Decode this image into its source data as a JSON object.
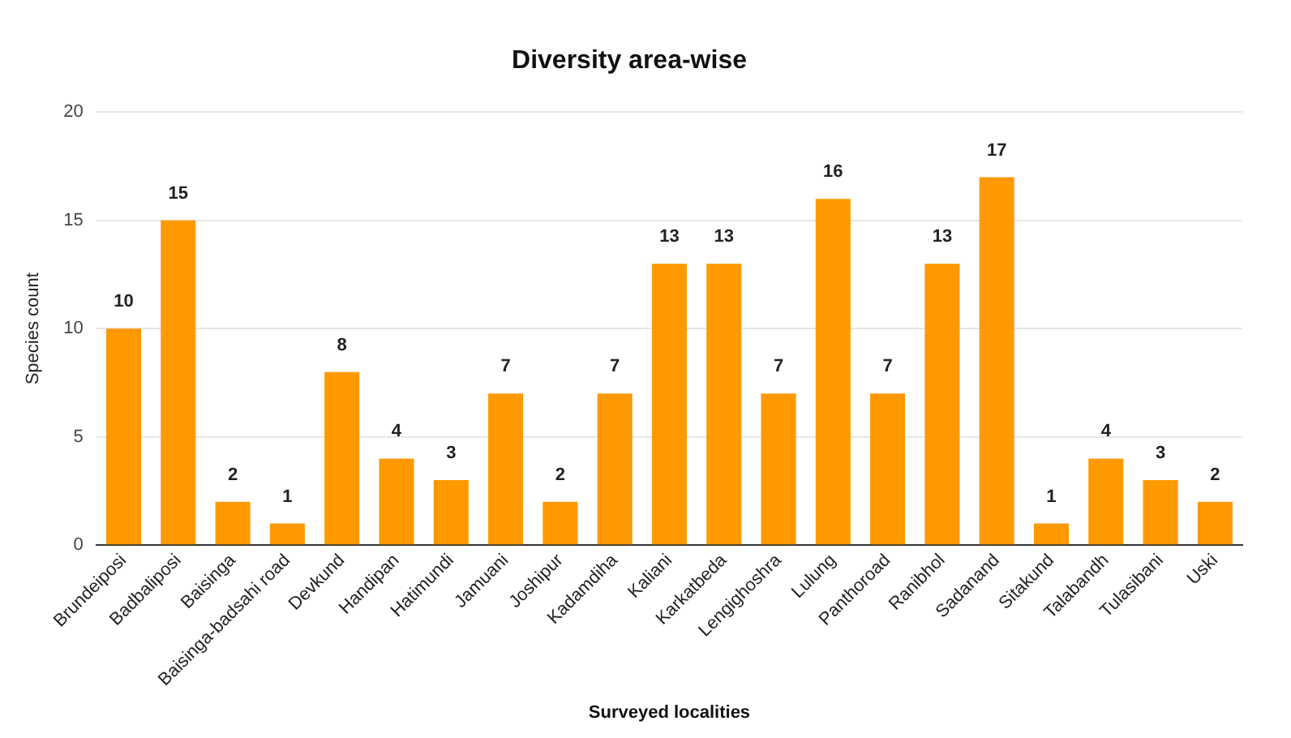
{
  "chart_data": {
    "type": "bar",
    "title": "Diversity area-wise",
    "xlabel": "Surveyed localities",
    "ylabel": "Species count",
    "categories": [
      "Brundeiposi",
      "Badbaliposi",
      "Baisinga",
      "Baisinga-badsahi road",
      "Devkund",
      "Handipan",
      "Hatimundi",
      "Jamuani",
      "Joshipur",
      "Kadamdiha",
      "Kaliani",
      "Karkatbeda",
      "Lengighoshra",
      "Lulung",
      "Panthoroad",
      "Ranibhol",
      "Sadanand",
      "Sitakund",
      "Talabandh",
      "Tulasibani",
      "Uski"
    ],
    "values": [
      10,
      15,
      2,
      1,
      8,
      4,
      3,
      7,
      2,
      7,
      13,
      13,
      7,
      16,
      7,
      13,
      17,
      1,
      4,
      3,
      2
    ],
    "color": "#ff9900",
    "ylim": [
      0,
      20
    ],
    "yticks": [
      0,
      5,
      10,
      15,
      20
    ],
    "grid": "y",
    "data_labels": true
  }
}
